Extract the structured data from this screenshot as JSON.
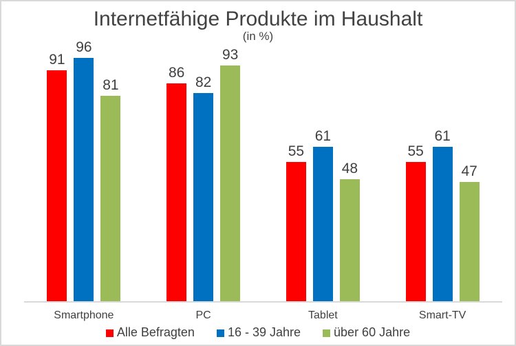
{
  "title": "Internetfähige Produkte im Haushalt",
  "subtitle": "(in %)",
  "colors": {
    "series_red": "#FF0000",
    "series_blue": "#0070C0",
    "series_green": "#9BBB59",
    "text": "#404040",
    "axis_line": "#D9D9D9",
    "frame_border": "#D9D9D9",
    "background": "#FFFFFF"
  },
  "chart_data": {
    "type": "bar",
    "title": "Internetfähige Produkte im Haushalt",
    "subtitle": "(in %)",
    "categories": [
      "Smartphone",
      "PC",
      "Tablet",
      "Smart-TV"
    ],
    "series": [
      {
        "name": "Alle Befragten",
        "color": "#FF0000",
        "values": [
          91,
          86,
          55,
          55
        ]
      },
      {
        "name": "16 - 39 Jahre",
        "color": "#0070C0",
        "values": [
          96,
          82,
          61,
          61
        ]
      },
      {
        "name": "über 60 Jahre",
        "color": "#9BBB59",
        "values": [
          81,
          93,
          48,
          47
        ]
      }
    ],
    "ylim": [
      0,
      100
    ],
    "grid": false,
    "value_labels": true,
    "legend_position": "bottom",
    "xlabel": "",
    "ylabel": ""
  }
}
